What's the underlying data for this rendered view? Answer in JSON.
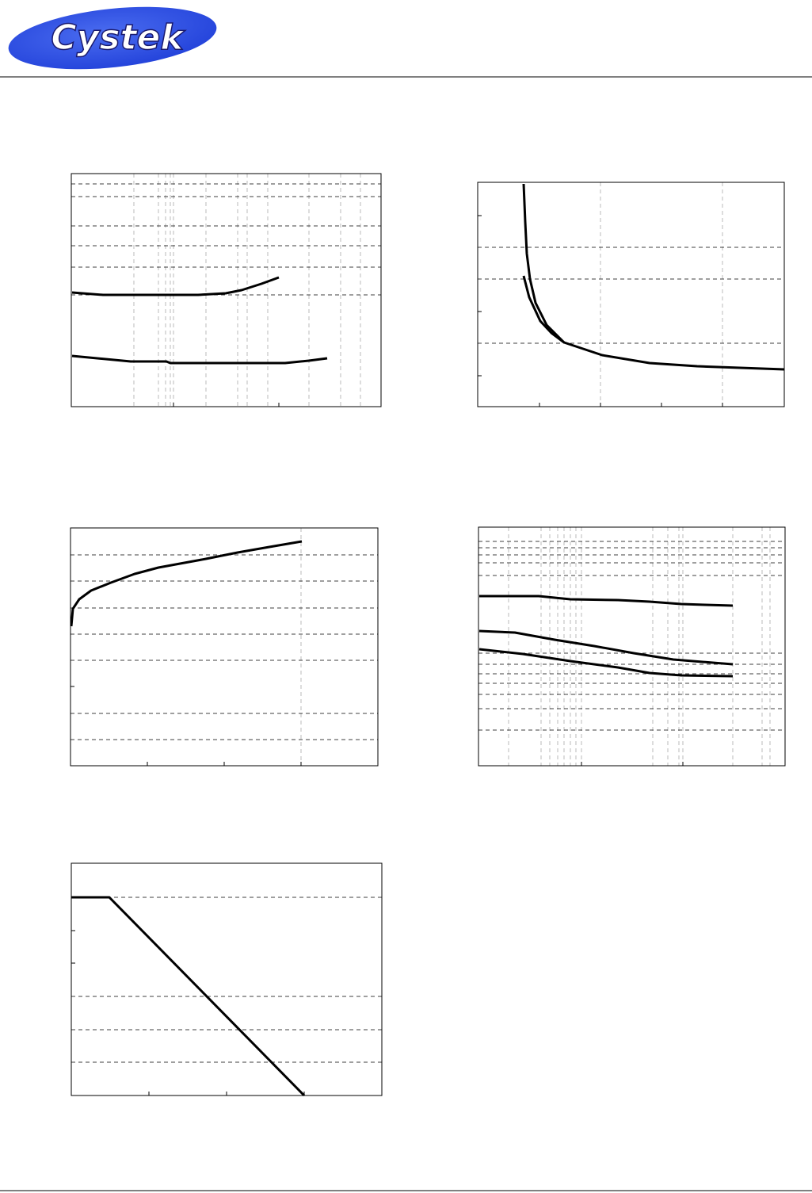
{
  "header": {
    "logo": "Cystek"
  }
}
